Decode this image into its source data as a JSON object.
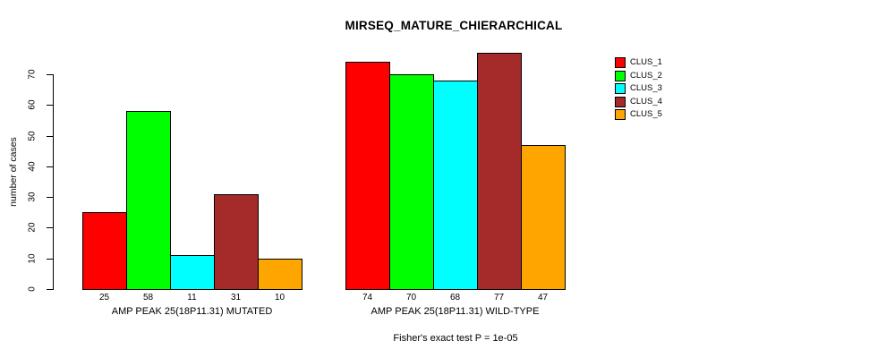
{
  "title": "MIRSEQ_MATURE_CHIERARCHICAL",
  "footnote": "Fisher's exact test P = 1e-05",
  "chart_data": {
    "type": "bar",
    "title": "MIRSEQ_MATURE_CHIERARCHICAL",
    "ylabel": "number of cases",
    "xlabel": "",
    "ylim": [
      0,
      70
    ],
    "yticks": [
      0,
      10,
      20,
      30,
      40,
      50,
      60,
      70
    ],
    "grid": false,
    "legend_position": "topright",
    "background_color": "#ffffff",
    "axis_color": "#000000",
    "bar_border_color": "#000000",
    "series": [
      {
        "name": "CLUS_1",
        "color": "#ff0000",
        "values": [
          25,
          74
        ]
      },
      {
        "name": "CLUS_2",
        "color": "#00ff00",
        "values": [
          58,
          70
        ]
      },
      {
        "name": "CLUS_3",
        "color": "#00ffff",
        "values": [
          11,
          68
        ]
      },
      {
        "name": "CLUS_4",
        "color": "#a52a2a",
        "values": [
          31,
          77
        ]
      },
      {
        "name": "CLUS_5",
        "color": "#ffa500",
        "values": [
          10,
          47
        ]
      }
    ],
    "groups": [
      {
        "label": "AMP PEAK 25(18P11.31) MUTATED",
        "values": [
          25,
          58,
          11,
          31,
          10
        ]
      },
      {
        "label": "AMP PEAK 25(18P11.31) WILD-TYPE",
        "values": [
          74,
          70,
          68,
          77,
          47
        ]
      }
    ],
    "bar_value_labels_shown": true,
    "annotation": "Fisher's exact test P = 1e-05"
  }
}
